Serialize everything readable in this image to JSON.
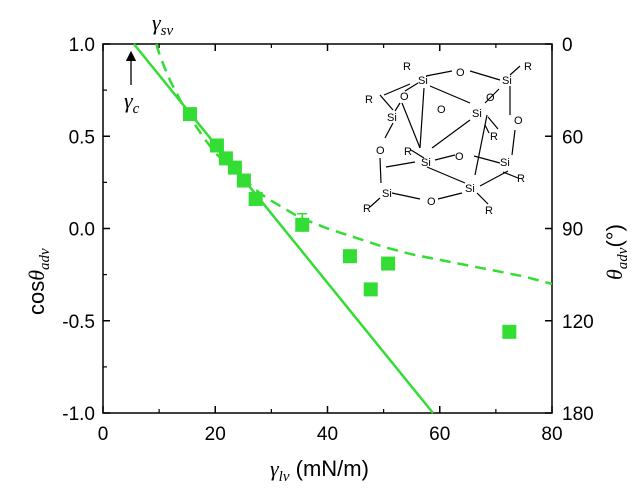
{
  "chart_data": {
    "type": "scatter",
    "x_axis": {
      "label_symbol": "γ",
      "label_subscript": "lv",
      "label_unit": " (mN/m)",
      "range": [
        0,
        80
      ],
      "ticks": [
        "0",
        "20",
        "40",
        "60",
        "80"
      ]
    },
    "y_left_axis": {
      "label_prefix": "cos",
      "label_symbol": "θ",
      "label_subscript": "adv",
      "range": [
        -1.0,
        1.0
      ],
      "ticks": [
        "1.0",
        "0.5",
        "0.0",
        "-0.5",
        "-1.0"
      ]
    },
    "y_right_axis": {
      "label_symbol": "θ",
      "label_subscript": "adv",
      "label_unit": "(°)",
      "ticks": [
        "0",
        "60",
        "90",
        "120",
        "180"
      ]
    },
    "series": [
      {
        "kind": "points",
        "marker": "square",
        "color": "#33dd33",
        "x": [
          15.5,
          20.3,
          21.9,
          23.5,
          25.1,
          27.2,
          35.5,
          44.0,
          47.7,
          50.8,
          72.4
        ],
        "y": [
          0.62,
          0.45,
          0.38,
          0.33,
          0.26,
          0.16,
          0.02,
          -0.15,
          -0.33,
          -0.19,
          -0.56
        ],
        "error_bars": [
          {
            "index": 6,
            "plus": 0.06,
            "minus": 0.04
          }
        ]
      },
      {
        "kind": "solid-line",
        "color": "#33dd33",
        "x": [
          5.5,
          58.8
        ],
        "y": [
          1.0,
          -1.0
        ]
      },
      {
        "kind": "dashed-curve",
        "color": "#33dd33",
        "x": [
          9.5,
          10,
          11,
          12,
          13,
          14,
          15,
          16,
          18,
          20,
          22,
          25,
          28,
          30,
          35,
          40,
          45,
          50,
          55,
          60,
          65,
          70,
          75,
          80
        ],
        "y": [
          1.0,
          0.95,
          0.87,
          0.8,
          0.74,
          0.68,
          0.63,
          0.58,
          0.49,
          0.41,
          0.35,
          0.27,
          0.19,
          0.15,
          0.06,
          0.0,
          -0.05,
          -0.1,
          -0.14,
          -0.17,
          -0.2,
          -0.23,
          -0.26,
          -0.3
        ]
      }
    ],
    "annotations": {
      "gamma_sv": {
        "symbol": "γ",
        "subscript": "sv"
      },
      "gamma_c": {
        "symbol": "γ",
        "subscript": "c"
      }
    },
    "structure": {
      "atoms": {
        "si": "Si",
        "o": "O",
        "r": "R"
      }
    },
    "grid": false,
    "legend": "none"
  }
}
